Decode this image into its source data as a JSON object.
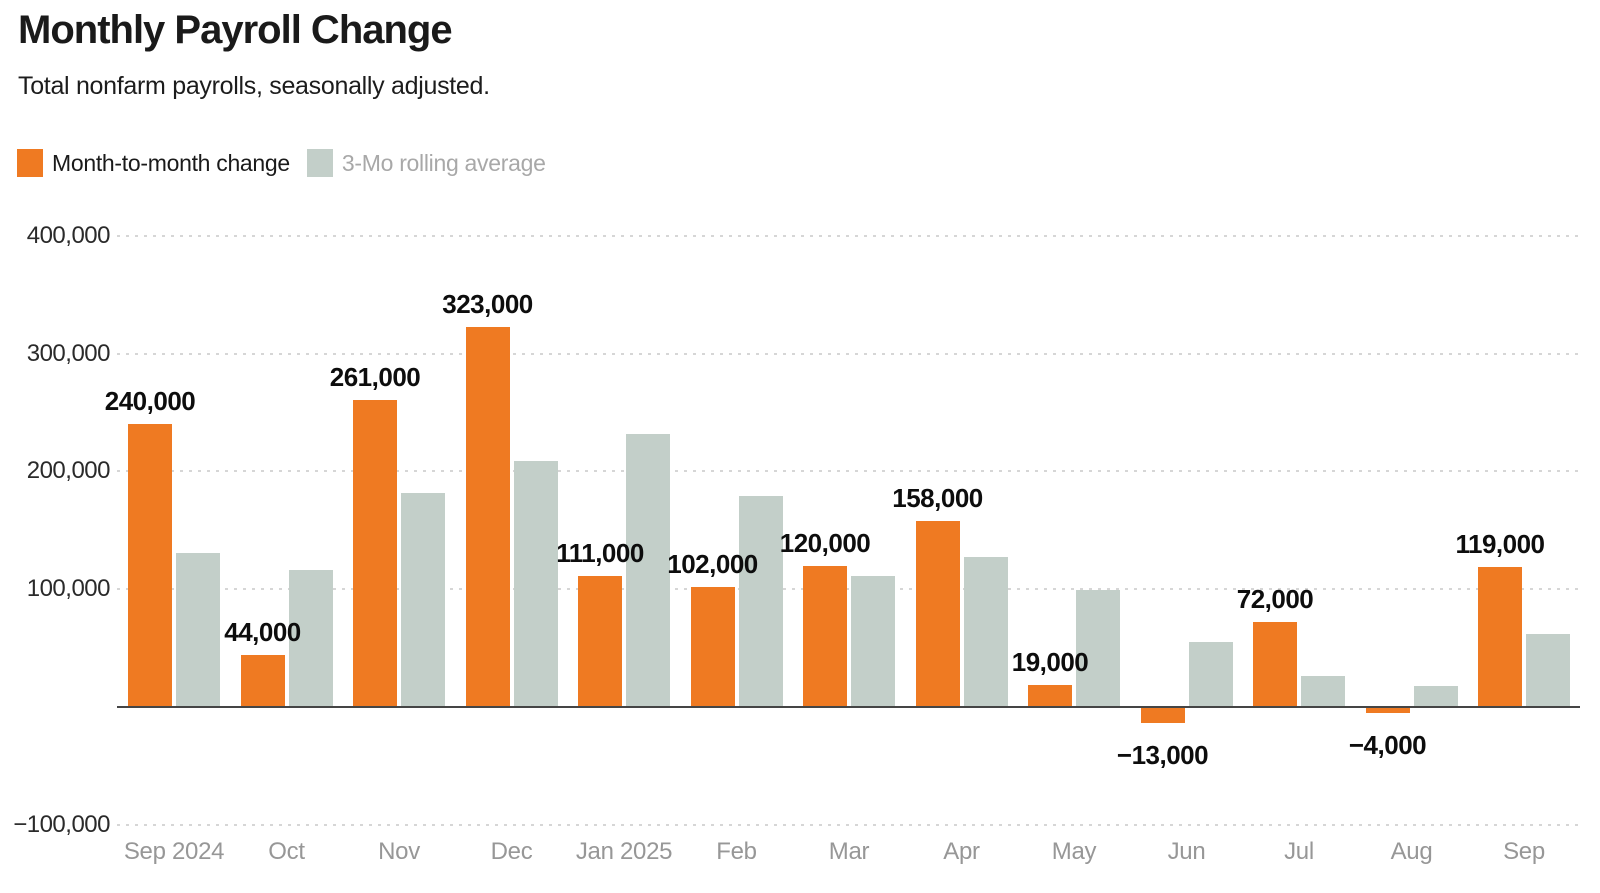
{
  "header": {
    "title": "Monthly Payroll Change",
    "subtitle": "Total nonfarm payrolls, seasonally adjusted."
  },
  "legend": {
    "items": [
      {
        "label": "Month-to-month change",
        "swatch_color": "#EF7A22",
        "text_color": "#1a1a1a"
      },
      {
        "label": "3-Mo rolling average",
        "swatch_color": "#C3CFC9",
        "text_color": "#a8a8a8"
      }
    ]
  },
  "chart_data": {
    "type": "bar",
    "title": "Monthly Payroll Change",
    "subtitle": "Total nonfarm payrolls, seasonally adjusted.",
    "categories": [
      "Sep 2024",
      "Oct",
      "Nov",
      "Dec",
      "Jan 2025",
      "Feb",
      "Mar",
      "Apr",
      "May",
      "Jun",
      "Jul",
      "Aug",
      "Sep"
    ],
    "series": [
      {
        "name": "Month-to-month change",
        "color": "#EF7A22",
        "values": [
          240000,
          44000,
          261000,
          323000,
          111000,
          102000,
          120000,
          158000,
          19000,
          -13000,
          72000,
          -4000,
          119000
        ],
        "value_labels": [
          "240,000",
          "44,000",
          "261,000",
          "323,000",
          "111,000",
          "102,000",
          "120,000",
          "158,000",
          "19,000",
          "−13,000",
          "72,000",
          "−4,000",
          "119,000"
        ],
        "labels_shown": true
      },
      {
        "name": "3-Mo rolling average",
        "color": "#C3CFC9",
        "values": [
          131000,
          116000,
          182000,
          209000,
          232000,
          179000,
          111000,
          127000,
          99000,
          55000,
          26000,
          18000,
          62000
        ],
        "labels_shown": false,
        "note_values_estimated_from_bar_heights": true
      }
    ],
    "y_axis": {
      "ticks": [
        {
          "value": 400000,
          "label": "400,000"
        },
        {
          "value": 300000,
          "label": "300,000"
        },
        {
          "value": 200000,
          "label": "200,000"
        },
        {
          "value": 100000,
          "label": "100,000"
        },
        {
          "value": -100000,
          "label": "−100,000"
        }
      ],
      "range": [
        -100000,
        400000
      ],
      "zero_baseline": true
    },
    "grid": "horizontal-dashed",
    "legend_position": "top-left",
    "colors": {
      "bar_primary": "#EF7A22",
      "bar_secondary": "#C3CFC9",
      "gridline": "#d6d6d6",
      "zero_axis": "#454545",
      "y_tick_text": "#2a2a2a",
      "x_tick_text": "#979797",
      "value_label_text": "#0d0d0d"
    }
  }
}
